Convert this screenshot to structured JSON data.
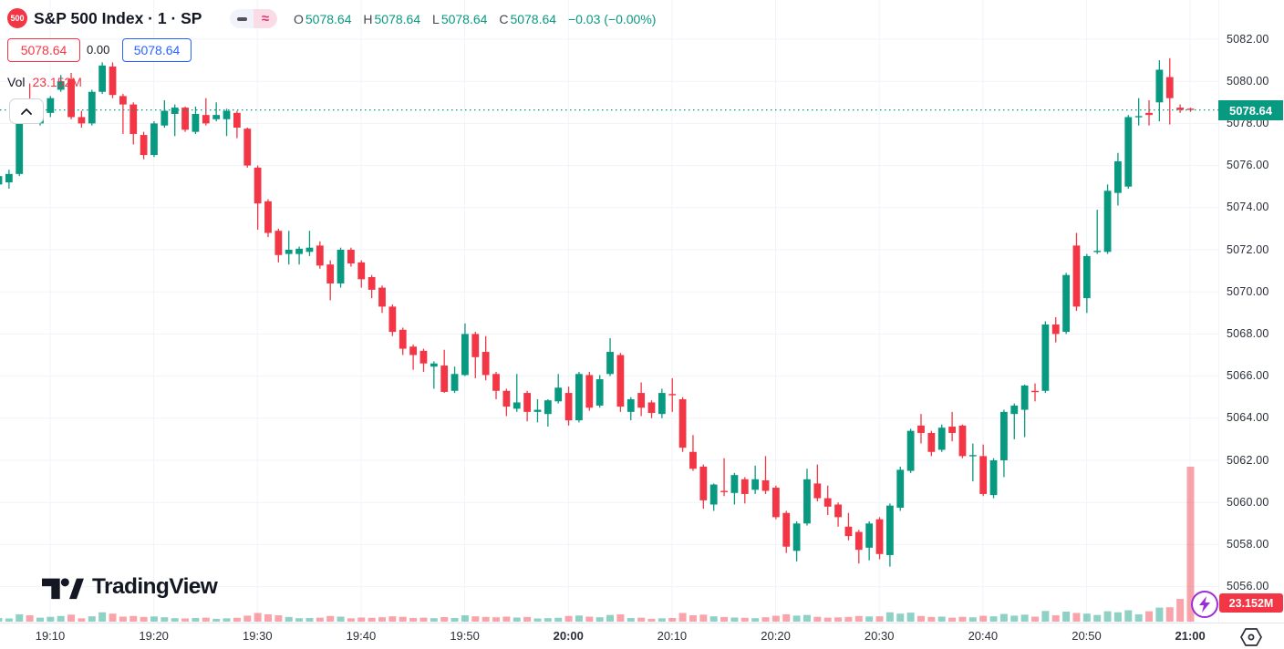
{
  "header": {
    "symbol_badge": "500",
    "title": "S&P 500 Index · 1 · SP",
    "ohlc": {
      "o_label": "O",
      "o": "5078.64",
      "h_label": "H",
      "h": "5078.64",
      "l_label": "L",
      "l": "5078.64",
      "c_label": "C",
      "c": "5078.64",
      "change": "−0.03 (−0.00%)"
    },
    "sell_price": "5078.64",
    "spread": "0.00",
    "buy_price": "5078.64",
    "vol_label": "Vol",
    "vol_value": "23.152M"
  },
  "price_scale": {
    "last_price_label": "5078.64",
    "ticks": [
      {
        "value": 5082,
        "label": "5082.00"
      },
      {
        "value": 5080,
        "label": "5080.00"
      },
      {
        "value": 5078,
        "label": "5078.00"
      },
      {
        "value": 5076,
        "label": "5076.00"
      },
      {
        "value": 5074,
        "label": "5074.00"
      },
      {
        "value": 5072,
        "label": "5072.00"
      },
      {
        "value": 5070,
        "label": "5070.00"
      },
      {
        "value": 5068,
        "label": "5068.00"
      },
      {
        "value": 5066,
        "label": "5066.00"
      },
      {
        "value": 5064,
        "label": "5064.00"
      },
      {
        "value": 5062,
        "label": "5062.00"
      },
      {
        "value": 5060,
        "label": "5060.00"
      },
      {
        "value": 5058,
        "label": "5058.00"
      },
      {
        "value": 5056,
        "label": "5056.00"
      }
    ]
  },
  "time_scale": {
    "labels": [
      {
        "text": "19:10",
        "bold": false
      },
      {
        "text": "19:20",
        "bold": false
      },
      {
        "text": "19:30",
        "bold": false
      },
      {
        "text": "19:40",
        "bold": false
      },
      {
        "text": "19:50",
        "bold": false
      },
      {
        "text": "20:00",
        "bold": true
      },
      {
        "text": "20:10",
        "bold": false
      },
      {
        "text": "20:20",
        "bold": false
      },
      {
        "text": "20:30",
        "bold": false
      },
      {
        "text": "20:40",
        "bold": false
      },
      {
        "text": "20:50",
        "bold": false
      },
      {
        "text": "21:00",
        "bold": true
      }
    ]
  },
  "footer": {
    "brand": "TradingView",
    "volume_badge": "23.152M"
  },
  "colors": {
    "up": "#089981",
    "down": "#f23645",
    "vol_up": "rgba(8,153,129,0.45)",
    "vol_down": "rgba(242,54,69,0.45)",
    "accent_blue": "#2962ff",
    "accent_red": "#f23645",
    "flash_purple": "#9c2ed9",
    "grid": "#f0f3fa",
    "text": "#131722"
  },
  "chart_data": {
    "type": "candlestick",
    "symbol": "S&P 500 Index",
    "interval": "1 minute",
    "start_time": "19:05",
    "end_time": "21:00",
    "price_line_value": 5078.64,
    "y_axis": {
      "min": 5055.4,
      "max": 5083.9,
      "grid_step": 2
    },
    "volume_axis": {
      "max_volume_m": 23.152
    },
    "columns": [
      "open",
      "high",
      "low",
      "close",
      "volume_m"
    ],
    "candles": [
      [
        5075.1,
        5075.9,
        5074.6,
        5075.5,
        0.55
      ],
      [
        5075.2,
        5075.8,
        5074.9,
        5075.6,
        0.48
      ],
      [
        5075.6,
        5078.5,
        5075.5,
        5078.3,
        1.1
      ],
      [
        5078.6,
        5079.9,
        5078.1,
        5078.3,
        0.95
      ],
      [
        5078.0,
        5078.7,
        5077.9,
        5078.6,
        0.6
      ],
      [
        5078.5,
        5079.3,
        5078.3,
        5079.2,
        0.72
      ],
      [
        5079.6,
        5080.3,
        5079.5,
        5080.0,
        0.85
      ],
      [
        5080.1,
        5080.4,
        5078.2,
        5078.3,
        1.05
      ],
      [
        5078.3,
        5078.6,
        5077.8,
        5078.0,
        0.5
      ],
      [
        5078.0,
        5079.6,
        5077.9,
        5079.5,
        0.8
      ],
      [
        5079.5,
        5080.9,
        5079.4,
        5080.75,
        1.4
      ],
      [
        5080.7,
        5080.9,
        5079.2,
        5079.35,
        1.2
      ],
      [
        5079.3,
        5079.4,
        5077.5,
        5078.9,
        0.75
      ],
      [
        5078.9,
        5079.0,
        5077.0,
        5077.5,
        0.85
      ],
      [
        5077.45,
        5077.6,
        5076.3,
        5076.5,
        0.7
      ],
      [
        5076.5,
        5078.1,
        5076.4,
        5078.0,
        0.78
      ],
      [
        5077.9,
        5079.1,
        5077.8,
        5078.6,
        0.66
      ],
      [
        5078.45,
        5078.9,
        5077.4,
        5078.75,
        0.52
      ],
      [
        5078.75,
        5078.8,
        5077.6,
        5077.7,
        0.48
      ],
      [
        5077.6,
        5078.8,
        5077.5,
        5078.45,
        0.55
      ],
      [
        5078.4,
        5079.2,
        5077.9,
        5078.0,
        0.6
      ],
      [
        5078.2,
        5079.0,
        5078.1,
        5078.4,
        0.42
      ],
      [
        5078.2,
        5078.7,
        5077.4,
        5078.6,
        0.5
      ],
      [
        5078.5,
        5078.6,
        5077.3,
        5077.8,
        0.58
      ],
      [
        5077.75,
        5077.8,
        5075.9,
        5076.0,
        0.9
      ],
      [
        5075.9,
        5076.0,
        5072.95,
        5074.2,
        1.3
      ],
      [
        5074.3,
        5074.4,
        5072.6,
        5072.8,
        1.1
      ],
      [
        5072.9,
        5073.0,
        5071.4,
        5071.75,
        0.95
      ],
      [
        5071.8,
        5072.9,
        5071.3,
        5072.0,
        0.7
      ],
      [
        5071.8,
        5072.15,
        5071.3,
        5072.05,
        0.52
      ],
      [
        5071.9,
        5072.9,
        5071.7,
        5072.1,
        0.55
      ],
      [
        5072.2,
        5072.4,
        5071.1,
        5071.25,
        0.6
      ],
      [
        5071.3,
        5071.5,
        5069.6,
        5070.4,
        0.85
      ],
      [
        5070.4,
        5072.1,
        5070.2,
        5072.0,
        0.75
      ],
      [
        5072.0,
        5072.1,
        5071.2,
        5071.35,
        0.5
      ],
      [
        5071.4,
        5071.5,
        5070.2,
        5070.6,
        0.62
      ],
      [
        5070.7,
        5070.8,
        5069.7,
        5070.1,
        0.58
      ],
      [
        5070.2,
        5070.3,
        5069.0,
        5069.3,
        0.66
      ],
      [
        5069.3,
        5069.4,
        5067.9,
        5068.1,
        0.8
      ],
      [
        5068.2,
        5068.3,
        5067.0,
        5067.3,
        0.72
      ],
      [
        5067.4,
        5067.5,
        5066.3,
        5067.0,
        0.55
      ],
      [
        5067.2,
        5067.3,
        5066.2,
        5066.6,
        0.6
      ],
      [
        5066.45,
        5066.7,
        5065.4,
        5066.6,
        0.52
      ],
      [
        5066.5,
        5067.25,
        5065.2,
        5065.25,
        0.68
      ],
      [
        5065.3,
        5066.45,
        5065.2,
        5066.1,
        0.55
      ],
      [
        5066.05,
        5068.5,
        5066.0,
        5068.0,
        0.95
      ],
      [
        5068.0,
        5068.1,
        5065.9,
        5066.9,
        0.8
      ],
      [
        5067.15,
        5067.9,
        5065.8,
        5066.05,
        0.7
      ],
      [
        5066.1,
        5066.2,
        5064.9,
        5065.3,
        0.65
      ],
      [
        5065.3,
        5065.4,
        5064.1,
        5064.55,
        0.75
      ],
      [
        5064.45,
        5066.1,
        5064.3,
        5064.75,
        0.62
      ],
      [
        5065.2,
        5065.3,
        5063.85,
        5064.3,
        0.7
      ],
      [
        5064.3,
        5064.9,
        5063.8,
        5064.4,
        0.48
      ],
      [
        5064.2,
        5064.9,
        5063.6,
        5064.85,
        0.52
      ],
      [
        5064.8,
        5066.1,
        5064.7,
        5065.45,
        0.58
      ],
      [
        5065.2,
        5065.5,
        5063.65,
        5063.9,
        0.85
      ],
      [
        5063.9,
        5066.2,
        5063.8,
        5066.1,
        0.92
      ],
      [
        5066.05,
        5066.2,
        5064.35,
        5064.5,
        0.75
      ],
      [
        5064.6,
        5066.05,
        5064.5,
        5065.85,
        0.66
      ],
      [
        5066.1,
        5067.8,
        5066.0,
        5067.15,
        1.0
      ],
      [
        5067.0,
        5067.1,
        5064.3,
        5064.55,
        1.1
      ],
      [
        5064.3,
        5065.0,
        5063.9,
        5064.9,
        0.54
      ],
      [
        5065.2,
        5065.7,
        5064.1,
        5064.5,
        0.6
      ],
      [
        5064.75,
        5064.85,
        5064.0,
        5064.25,
        0.42
      ],
      [
        5064.2,
        5065.4,
        5064.0,
        5065.2,
        0.5
      ],
      [
        5065.15,
        5065.9,
        5064.3,
        5065.1,
        0.55
      ],
      [
        5064.9,
        5065.0,
        5062.4,
        5062.6,
        1.3
      ],
      [
        5062.4,
        5063.2,
        5061.5,
        5061.6,
        0.95
      ],
      [
        5061.7,
        5061.8,
        5059.7,
        5060.1,
        1.05
      ],
      [
        5059.9,
        5060.9,
        5059.6,
        5060.85,
        0.8
      ],
      [
        5060.55,
        5062.1,
        5060.3,
        5060.5,
        0.7
      ],
      [
        5060.45,
        5061.4,
        5059.9,
        5061.3,
        0.62
      ],
      [
        5061.1,
        5061.2,
        5059.95,
        5060.4,
        0.58
      ],
      [
        5060.6,
        5061.75,
        5060.4,
        5061.1,
        0.52
      ],
      [
        5061.05,
        5062.2,
        5060.4,
        5060.55,
        0.66
      ],
      [
        5060.7,
        5060.8,
        5059.2,
        5059.3,
        0.88
      ],
      [
        5059.5,
        5059.6,
        5057.6,
        5057.9,
        1.1
      ],
      [
        5057.7,
        5059.1,
        5057.2,
        5059.0,
        0.9
      ],
      [
        5059.0,
        5061.6,
        5058.9,
        5061.1,
        1.0
      ],
      [
        5060.9,
        5061.8,
        5060.05,
        5060.2,
        0.72
      ],
      [
        5060.2,
        5060.8,
        5059.4,
        5059.8,
        0.6
      ],
      [
        5059.9,
        5060.0,
        5058.85,
        5059.3,
        0.64
      ],
      [
        5058.85,
        5059.5,
        5058.2,
        5058.4,
        0.7
      ],
      [
        5058.6,
        5058.7,
        5057.1,
        5057.75,
        0.85
      ],
      [
        5057.85,
        5059.1,
        5057.25,
        5059.0,
        0.78
      ],
      [
        5059.2,
        5059.3,
        5057.3,
        5057.55,
        0.8
      ],
      [
        5057.5,
        5059.95,
        5056.95,
        5059.85,
        1.4
      ],
      [
        5059.75,
        5061.7,
        5059.6,
        5061.55,
        1.2
      ],
      [
        5061.5,
        5063.5,
        5061.4,
        5063.4,
        1.35
      ],
      [
        5063.65,
        5064.2,
        5062.8,
        5063.3,
        0.85
      ],
      [
        5063.3,
        5063.4,
        5062.2,
        5062.4,
        0.7
      ],
      [
        5062.5,
        5063.7,
        5062.4,
        5063.55,
        0.75
      ],
      [
        5063.6,
        5064.3,
        5062.9,
        5063.3,
        0.6
      ],
      [
        5063.65,
        5063.7,
        5062.1,
        5062.2,
        0.72
      ],
      [
        5062.2,
        5062.8,
        5061.0,
        5062.25,
        0.65
      ],
      [
        5062.2,
        5062.75,
        5060.3,
        5060.4,
        0.88
      ],
      [
        5060.35,
        5062.1,
        5060.2,
        5062.0,
        0.8
      ],
      [
        5062.0,
        5064.4,
        5061.2,
        5064.3,
        1.15
      ],
      [
        5064.2,
        5064.7,
        5063.0,
        5064.6,
        0.9
      ],
      [
        5064.4,
        5065.6,
        5063.1,
        5065.55,
        1.05
      ],
      [
        5065.3,
        5065.65,
        5064.8,
        5065.25,
        0.75
      ],
      [
        5065.3,
        5068.6,
        5065.2,
        5068.45,
        1.6
      ],
      [
        5068.45,
        5068.8,
        5067.6,
        5068.0,
        0.95
      ],
      [
        5068.1,
        5070.9,
        5068.0,
        5070.8,
        1.5
      ],
      [
        5072.2,
        5072.8,
        5069.1,
        5069.3,
        1.3
      ],
      [
        5069.7,
        5071.8,
        5069.0,
        5071.7,
        1.2
      ],
      [
        5071.9,
        5073.9,
        5071.8,
        5071.95,
        1.0
      ],
      [
        5071.9,
        5075.1,
        5071.8,
        5074.8,
        1.55
      ],
      [
        5074.7,
        5076.6,
        5074.1,
        5076.2,
        1.4
      ],
      [
        5075.0,
        5078.4,
        5074.9,
        5078.3,
        1.7
      ],
      [
        5078.3,
        5079.2,
        5077.9,
        5078.35,
        1.1
      ],
      [
        5078.5,
        5079.1,
        5077.9,
        5078.4,
        1.55
      ],
      [
        5079.0,
        5081.0,
        5078.1,
        5080.55,
        2.1
      ],
      [
        5080.2,
        5081.1,
        5077.95,
        5079.2,
        2.15
      ],
      [
        5078.75,
        5078.9,
        5078.5,
        5078.64,
        3.4
      ],
      [
        5078.7,
        5078.75,
        5078.55,
        5078.64,
        23.152
      ]
    ]
  }
}
